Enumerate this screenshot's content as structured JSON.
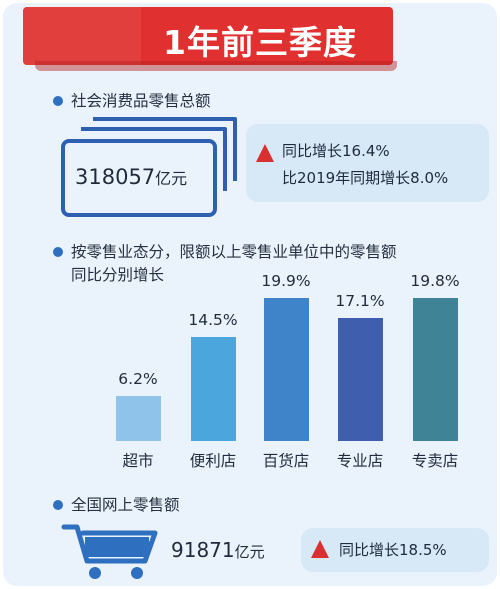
{
  "header": {
    "title": "1年前三季度"
  },
  "retail_total": {
    "label": "社会消费品零售总额",
    "value": "318057",
    "unit": "亿元",
    "growth_line1": "同比增长16.4%",
    "growth_line2": "比2019年同期增长8.0%"
  },
  "retail_formats": {
    "label_line1": "按零售业态分，限额以上零售业单位中的零售额",
    "label_line2": "同比分别增长"
  },
  "chart_data": {
    "type": "bar",
    "categories": [
      "超市",
      "便利店",
      "百货店",
      "专业店",
      "专卖店"
    ],
    "values": [
      6.2,
      14.5,
      19.9,
      17.1,
      19.8
    ],
    "value_labels": [
      "6.2%",
      "14.5%",
      "19.9%",
      "17.1%",
      "19.8%"
    ],
    "colors": [
      "#8fc3ea",
      "#4aa6dd",
      "#3f83c9",
      "#3f5fae",
      "#3f8396"
    ],
    "ylim": [
      0,
      20
    ],
    "grid": false
  },
  "online_retail": {
    "label": "全国网上零售额",
    "value": "91871",
    "unit": "亿元",
    "growth": "同比增长18.5%"
  },
  "colors": {
    "accent_red": "#e03030",
    "bullet_blue": "#2f6fbf",
    "panel_bg": "#eaf3fb"
  },
  "icons": [
    "banknote-stack-icon",
    "up-arrow-icon",
    "shopping-cart-icon"
  ]
}
